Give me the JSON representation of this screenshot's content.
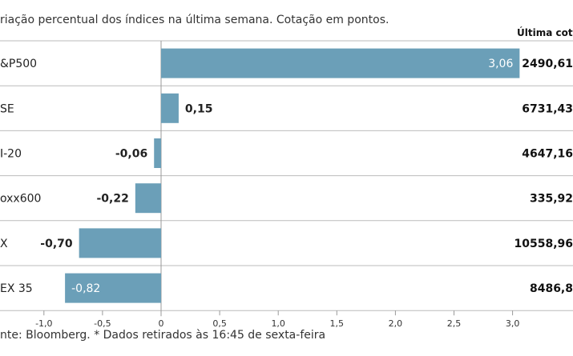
{
  "subtitle": "riação percentual dos índices na última semana. Cotação em pontos.",
  "column_header": "Última cotaç",
  "source": "nte: Bloomberg.  * Dados retirados às 16:45 de sexta-feira",
  "colors": {
    "bar": "#6b9fb8",
    "bar_label_inside": "#ffffff",
    "grid": "#bbbbbb",
    "text": "#222222"
  },
  "chart_data": {
    "type": "bar",
    "orientation": "horizontal",
    "categories": [
      "&P500",
      "SE",
      "I-20",
      "oxx600",
      "X",
      "EX 35"
    ],
    "values": [
      3.06,
      0.15,
      -0.06,
      -0.22,
      -0.7,
      -0.82
    ],
    "value_labels": [
      "3,06",
      "0,15",
      "-0,06",
      "-0,22",
      "-0,70",
      "-0,82"
    ],
    "last_quote": [
      "2490,61",
      "6731,43",
      "4647,16",
      "335,92",
      "10558,96",
      "8486,8"
    ],
    "xlim": [
      -1.0,
      3.0
    ],
    "xticks": [
      -1.0,
      -0.5,
      0,
      0.5,
      1.0,
      1.5,
      2.0,
      2.5,
      3.0
    ],
    "xtick_labels": [
      "-1,0",
      "-0,5",
      "0",
      "0,5",
      "1,0",
      "1,5",
      "2,0",
      "2,5",
      "3,0"
    ],
    "inside_label_rows": [
      0,
      5
    ]
  }
}
